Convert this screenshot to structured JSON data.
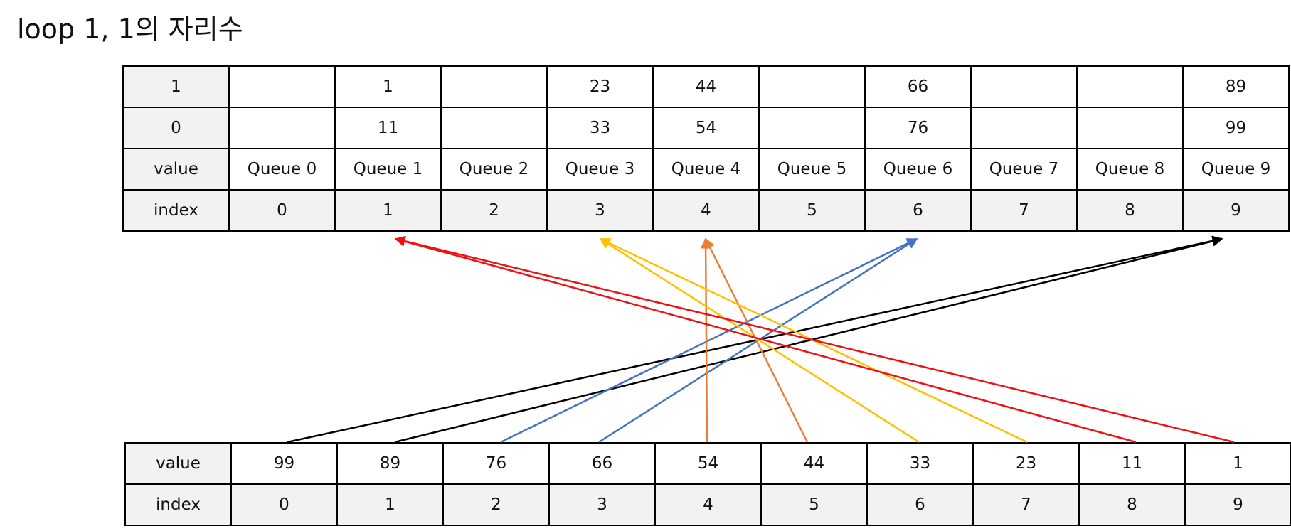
{
  "title": "loop 1, 1의 자리수",
  "top_table": {
    "rows": [
      {
        "label": "1",
        "cells": [
          "",
          "1",
          "",
          "23",
          "44",
          "",
          "66",
          "",
          "",
          "89"
        ],
        "shade": false
      },
      {
        "label": "0",
        "cells": [
          "",
          "11",
          "",
          "33",
          "54",
          "",
          "76",
          "",
          "",
          "99"
        ],
        "shade": false
      },
      {
        "label": "value",
        "cells": [
          "Queue 0",
          "Queue 1",
          "Queue 2",
          "Queue 3",
          "Queue 4",
          "Queue 5",
          "Queue 6",
          "Queue 7",
          "Queue 8",
          "Queue 9"
        ],
        "shade": false
      },
      {
        "label": "index",
        "cells": [
          "0",
          "1",
          "2",
          "3",
          "4",
          "5",
          "6",
          "7",
          "8",
          "9"
        ],
        "shade": true
      }
    ]
  },
  "bottom_table": {
    "rows": [
      {
        "label": "value",
        "cells": [
          "99",
          "89",
          "76",
          "66",
          "54",
          "44",
          "33",
          "23",
          "11",
          "1"
        ],
        "shade": false
      },
      {
        "label": "index",
        "cells": [
          "0",
          "1",
          "2",
          "3",
          "4",
          "5",
          "6",
          "7",
          "8",
          "9"
        ],
        "shade": true
      }
    ]
  },
  "colors": {
    "red": "#ee1111",
    "yellow": "#ffc000",
    "orange": "#ed7d31",
    "blue": "#4472c4",
    "black": "#000000"
  },
  "arrows": [
    {
      "from_index": 0,
      "to_queue": 9,
      "color": "black"
    },
    {
      "from_index": 1,
      "to_queue": 9,
      "color": "black"
    },
    {
      "from_index": 2,
      "to_queue": 6,
      "color": "blue"
    },
    {
      "from_index": 3,
      "to_queue": 6,
      "color": "blue"
    },
    {
      "from_index": 4,
      "to_queue": 4,
      "color": "orange"
    },
    {
      "from_index": 5,
      "to_queue": 4,
      "color": "orange"
    },
    {
      "from_index": 6,
      "to_queue": 3,
      "color": "yellow"
    },
    {
      "from_index": 7,
      "to_queue": 3,
      "color": "yellow"
    },
    {
      "from_index": 8,
      "to_queue": 1,
      "color": "red"
    },
    {
      "from_index": 9,
      "to_queue": 1,
      "color": "red"
    }
  ]
}
